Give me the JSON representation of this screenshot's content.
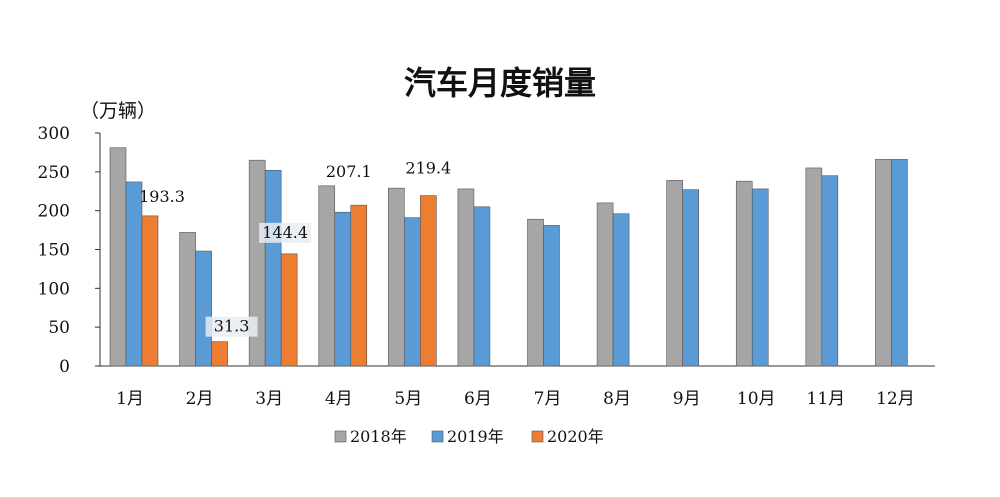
{
  "chart_data": {
    "type": "bar",
    "title": "汽车月度销量",
    "ylabel": "（万辆）",
    "xlabel": "",
    "ylim": [
      0,
      300
    ],
    "yticks": [
      0,
      50,
      100,
      150,
      200,
      250,
      300
    ],
    "categories": [
      "1月",
      "2月",
      "3月",
      "4月",
      "5月",
      "6月",
      "7月",
      "8月",
      "9月",
      "10月",
      "11月",
      "12月"
    ],
    "series": [
      {
        "name": "2018年",
        "color": "#a6a6a6",
        "values": [
          281,
          172,
          265,
          232,
          229,
          228,
          189,
          210,
          239,
          238,
          255,
          266
        ]
      },
      {
        "name": "2019年",
        "color": "#5b9bd5",
        "values": [
          237,
          148,
          252,
          198,
          191,
          205,
          181,
          196,
          227,
          228,
          245,
          266
        ]
      },
      {
        "name": "2020年",
        "color": "#ed7d31",
        "values": [
          193.3,
          31.3,
          144.4,
          207.1,
          219.4,
          null,
          null,
          null,
          null,
          null,
          null,
          null
        ]
      }
    ],
    "data_labels": [
      {
        "series": 2,
        "index": 0,
        "text": "193.3"
      },
      {
        "series": 2,
        "index": 1,
        "text": "31.3"
      },
      {
        "series": 2,
        "index": 2,
        "text": "144.4"
      },
      {
        "series": 2,
        "index": 3,
        "text": "207.1"
      },
      {
        "series": 2,
        "index": 4,
        "text": "219.4"
      }
    ],
    "legend_position": "bottom"
  }
}
